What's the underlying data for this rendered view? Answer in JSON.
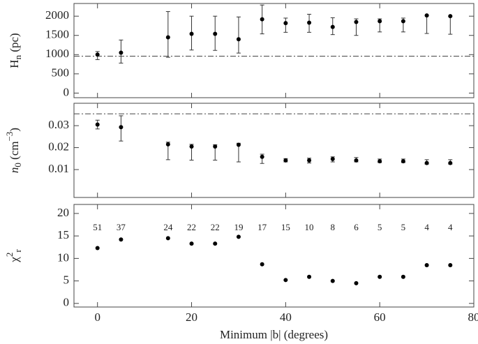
{
  "chart_data": [
    {
      "type": "scatter",
      "ylabel": [
        {
          "text": "H",
          "style": "normal"
        },
        {
          "text": "n",
          "style": "sub"
        },
        {
          "text": " (pc)",
          "style": "normal"
        }
      ],
      "x": [
        0,
        5,
        15,
        20,
        25,
        30,
        35,
        40,
        45,
        50,
        55,
        60,
        65,
        70,
        75
      ],
      "values": [
        1000,
        1050,
        1450,
        1540,
        1540,
        1400,
        1920,
        1820,
        1830,
        1720,
        1850,
        1870,
        1870,
        2020,
        2000
      ],
      "err_low": [
        130,
        270,
        520,
        420,
        430,
        360,
        380,
        240,
        250,
        200,
        350,
        280,
        280,
        470,
        470
      ],
      "err_high": [
        80,
        330,
        670,
        460,
        460,
        580,
        370,
        130,
        220,
        240,
        80,
        60,
        80,
        0,
        0
      ],
      "hline": 960,
      "xlim": [
        -5,
        80
      ],
      "xticks": [
        0,
        20,
        40,
        60,
        80
      ],
      "ylim": [
        -120,
        2330
      ],
      "yticks": [
        0,
        500,
        1000,
        1500,
        2000
      ],
      "color": "#000000"
    },
    {
      "type": "scatter",
      "ylabel": [
        {
          "text": "n",
          "style": "italic"
        },
        {
          "text": "0",
          "style": "sub"
        },
        {
          "text": " (cm",
          "style": "normal"
        },
        {
          "text": "−3",
          "style": "sup"
        },
        {
          "text": ")",
          "style": "normal"
        }
      ],
      "x": [
        0,
        5,
        15,
        20,
        25,
        30,
        35,
        40,
        45,
        50,
        55,
        60,
        65,
        70,
        75
      ],
      "values": [
        0.0305,
        0.0293,
        0.0215,
        0.0205,
        0.0205,
        0.0213,
        0.0158,
        0.0142,
        0.0142,
        0.0148,
        0.0142,
        0.0138,
        0.0138,
        0.013,
        0.013
      ],
      "err_low": [
        0.002,
        0.0063,
        0.007,
        0.0062,
        0.0062,
        0.0078,
        0.003,
        0.0007,
        0.0012,
        0.0013,
        0.0007,
        0.0006,
        0.0006,
        0.0005,
        0.0005
      ],
      "err_high": [
        0.002,
        0.0052,
        0.001,
        0.001,
        0.0008,
        0.0007,
        0.0012,
        0.0008,
        0.001,
        0.001,
        0.0013,
        0.001,
        0.001,
        0.0015,
        0.0015
      ],
      "hline": 0.0354,
      "xlim": [
        -5,
        80
      ],
      "xticks": [
        0,
        20,
        40,
        60,
        80
      ],
      "ylim": [
        -0.0027,
        0.0402
      ],
      "yticks": [
        0.01,
        0.02,
        0.03
      ],
      "color": "#000000"
    },
    {
      "type": "scatter",
      "ylabel": [
        {
          "text": "χ",
          "style": "normal"
        },
        {
          "text": "2",
          "style": "sup"
        },
        {
          "text": "r",
          "style": "sub"
        }
      ],
      "xlabel": "Minimum |b| (degrees)",
      "x": [
        0,
        5,
        15,
        20,
        25,
        30,
        35,
        40,
        45,
        50,
        55,
        60,
        65,
        70,
        75
      ],
      "values": [
        12.3,
        14.2,
        14.5,
        13.3,
        13.3,
        14.8,
        8.7,
        5.2,
        5.9,
        5.0,
        4.5,
        5.9,
        5.9,
        8.5,
        8.5
      ],
      "annotations": [
        51,
        37,
        24,
        22,
        22,
        19,
        17,
        15,
        10,
        8,
        6,
        5,
        5,
        4,
        4
      ],
      "xlim": [
        -5,
        80
      ],
      "xticks": [
        0,
        20,
        40,
        60,
        80
      ],
      "ylim": [
        -0.8,
        22
      ],
      "yticks": [
        0,
        5,
        10,
        15,
        20
      ],
      "color": "#000000"
    }
  ]
}
